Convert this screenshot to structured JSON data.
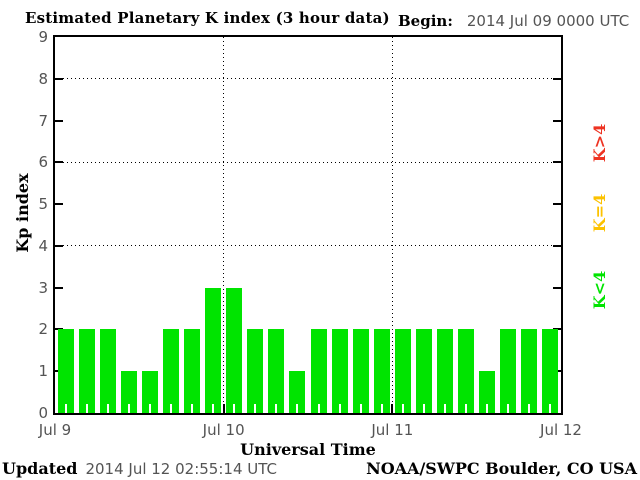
{
  "header": {
    "title": "Estimated Planetary K index (3 hour data)",
    "begin_label": "Begin:",
    "begin_value": "2014 Jul 09 0000 UTC"
  },
  "footer": {
    "updated_label": "Updated",
    "updated_value": "2014 Jul 12 02:55:14 UTC",
    "source": "NOAA/SWPC Boulder, CO USA"
  },
  "chart_data": {
    "type": "bar",
    "title": "Estimated Planetary K index (3 hour data)",
    "xlabel": "Universal Time",
    "ylabel": "Kp index",
    "ylim": [
      0,
      9
    ],
    "y_ticks": [
      0,
      1,
      2,
      3,
      4,
      5,
      6,
      7,
      8,
      9
    ],
    "x_tick_labels": [
      "Jul 9",
      "Jul 10",
      "Jul 11",
      "Jul 12"
    ],
    "h_gridlines_at": [
      4,
      6,
      8
    ],
    "interval_label": "3 hour data",
    "bars_per_day": 8,
    "values": [
      2,
      2,
      2,
      1,
      1,
      2,
      2,
      3,
      3,
      2,
      2,
      1,
      2,
      2,
      2,
      2,
      2,
      2,
      2,
      2,
      1,
      2,
      2,
      2
    ],
    "bar_color": "#00e400",
    "legend": [
      {
        "label": "K>4",
        "color": "#ee3322"
      },
      {
        "label": "K=4",
        "color": "#fcc200"
      },
      {
        "label": "K<4",
        "color": "#00e400"
      }
    ],
    "colors": {
      "axis_text": "#545454",
      "frame": "#000000"
    }
  }
}
